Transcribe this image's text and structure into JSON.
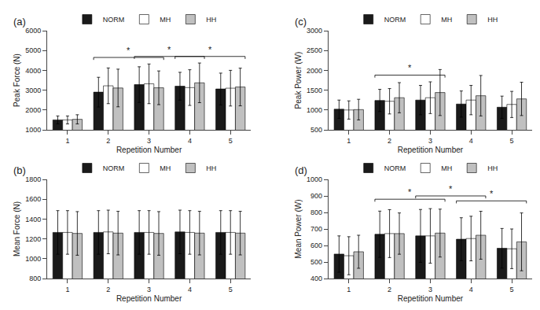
{
  "chart_data": [
    {
      "type": "bar",
      "title": "(a)",
      "xlabel": "Repetition Number",
      "ylabel": "Peak Force (N)",
      "categories": [
        1,
        2,
        3,
        4,
        5
      ],
      "series": [
        {
          "name": "NORM",
          "color": "#1a1a1a",
          "values": [
            1500,
            2900,
            3280,
            3200,
            3060
          ],
          "errors": [
            200,
            750,
            900,
            700,
            800
          ]
        },
        {
          "name": "MH",
          "color": "#ffffff",
          "values": [
            1500,
            3220,
            3320,
            3130,
            3100
          ],
          "errors": [
            200,
            900,
            1000,
            900,
            900
          ]
        },
        {
          "name": "HH",
          "color": "#c0c0c0",
          "values": [
            1530,
            3110,
            3120,
            3370,
            3160
          ],
          "errors": [
            230,
            950,
            850,
            1000,
            950
          ]
        }
      ],
      "ylim": [
        1000,
        6000
      ],
      "yticks": [
        1000,
        2000,
        3000,
        4000,
        5000,
        6000
      ],
      "grid": false,
      "legend": "upper left",
      "annotations": [
        {
          "text": "*",
          "x_from": 2,
          "x_to": 3,
          "y": 4650
        },
        {
          "text": "*",
          "x_from": 3,
          "x_to": 4,
          "y": 4700
        },
        {
          "text": "*",
          "x_from": 4,
          "x_to": 5,
          "y": 4700
        }
      ]
    },
    {
      "type": "bar",
      "title": "(b)",
      "xlabel": "Repetition Number",
      "ylabel": "Mean Force (N)",
      "categories": [
        1,
        2,
        3,
        4,
        5
      ],
      "series": [
        {
          "name": "NORM",
          "color": "#1a1a1a",
          "values": [
            1265,
            1265,
            1265,
            1270,
            1265
          ],
          "errors": [
            220,
            220,
            220,
            220,
            220
          ]
        },
        {
          "name": "MH",
          "color": "#ffffff",
          "values": [
            1265,
            1270,
            1265,
            1265,
            1265
          ],
          "errors": [
            220,
            220,
            220,
            220,
            220
          ]
        },
        {
          "name": "HH",
          "color": "#c0c0c0",
          "values": [
            1255,
            1258,
            1255,
            1258,
            1258
          ],
          "errors": [
            220,
            220,
            220,
            220,
            220
          ]
        }
      ],
      "ylim": [
        800,
        1800
      ],
      "yticks": [
        800,
        1000,
        1200,
        1400,
        1600,
        1800
      ],
      "grid": false,
      "legend": "upper left"
    },
    {
      "type": "bar",
      "title": "(c)",
      "xlabel": "Repetition Number",
      "ylabel": "Peak Power (W)",
      "categories": [
        1,
        2,
        3,
        4,
        5
      ],
      "series": [
        {
          "name": "NORM",
          "color": "#1a1a1a",
          "values": [
            1020,
            1240,
            1250,
            1150,
            1070
          ],
          "errors": [
            230,
            280,
            370,
            330,
            280
          ]
        },
        {
          "name": "MH",
          "color": "#ffffff",
          "values": [
            1000,
            1220,
            1310,
            1250,
            1140
          ],
          "errors": [
            230,
            320,
            400,
            370,
            330
          ]
        },
        {
          "name": "HH",
          "color": "#c0c0c0",
          "values": [
            1010,
            1310,
            1440,
            1360,
            1280
          ],
          "errors": [
            260,
            380,
            580,
            510,
            420
          ]
        }
      ],
      "ylim": [
        500,
        3000
      ],
      "yticks": [
        500,
        1000,
        1500,
        2000,
        2500,
        3000
      ],
      "grid": false,
      "legend": "upper left",
      "annotations": [
        {
          "text": "*",
          "x_from": 2,
          "x_to": 3,
          "y": 1880
        }
      ]
    },
    {
      "type": "bar",
      "title": "(d)",
      "xlabel": "Repetition Number",
      "ylabel": "Mean Power (W)",
      "categories": [
        1,
        2,
        3,
        4,
        5
      ],
      "series": [
        {
          "name": "NORM",
          "color": "#1a1a1a",
          "values": [
            548,
            668,
            658,
            638,
            583
          ],
          "errors": [
            110,
            140,
            160,
            130,
            120
          ]
        },
        {
          "name": "MH",
          "color": "#ffffff",
          "values": [
            538,
            672,
            658,
            642,
            580
          ],
          "errors": [
            115,
            145,
            165,
            135,
            120
          ]
        },
        {
          "name": "HH",
          "color": "#c0c0c0",
          "values": [
            562,
            672,
            675,
            662,
            622
          ],
          "errors": [
            100,
            125,
            145,
            145,
            175
          ]
        }
      ],
      "ylim": [
        400,
        1000
      ],
      "yticks": [
        400,
        500,
        600,
        700,
        800,
        900,
        1000
      ],
      "grid": false,
      "legend": "upper left",
      "annotations": [
        {
          "text": "*",
          "x_from": 2,
          "x_to": 3,
          "y": 880
        },
        {
          "text": "*",
          "x_from": 3,
          "x_to": 4,
          "y": 900
        },
        {
          "text": "*",
          "x_from": 4,
          "x_to": 5,
          "y": 870
        }
      ]
    }
  ]
}
